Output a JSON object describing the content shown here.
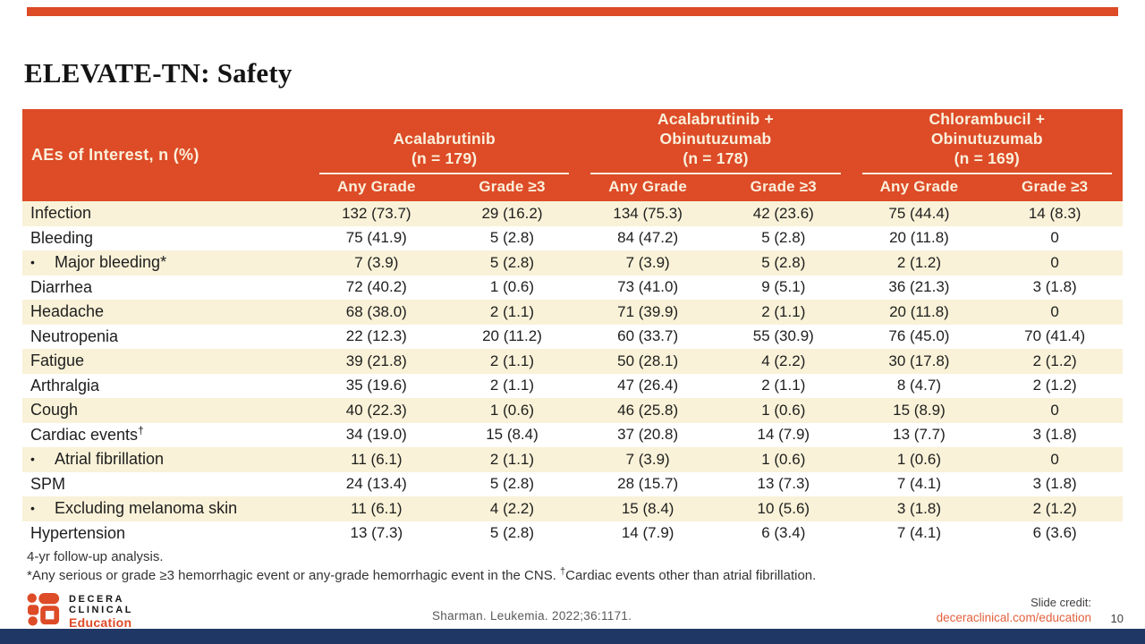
{
  "slide": {
    "title": "ELEVATE-TN: Safety",
    "page_number": "10"
  },
  "colors": {
    "brand_orange": "#DD4B27",
    "header_text_cream": "#FAF0DC",
    "row_stripe": "#F9F2D8",
    "bottom_bar_navy": "#1F3765",
    "link_orange": "#E2603C",
    "body_text": "#1E1E1E"
  },
  "table": {
    "corner_header": "AEs of Interest, n (%)",
    "groups": [
      {
        "title_lines": [
          "Acalabrutinib",
          "(n = 179)"
        ]
      },
      {
        "title_lines": [
          "Acalabrutinib +",
          "Obinutuzumab",
          "(n = 178)"
        ]
      },
      {
        "title_lines": [
          "Chlorambucil +",
          "Obinutuzumab",
          "(n = 169)"
        ]
      }
    ],
    "subheaders": [
      "Any Grade",
      "Grade ≥3",
      "Any Grade",
      "Grade ≥3",
      "Any Grade",
      "Grade ≥3"
    ],
    "rows": [
      {
        "label": "Infection",
        "bullet": false,
        "sup": "",
        "values": [
          "132 (73.7)",
          "29 (16.2)",
          "134 (75.3)",
          "42 (23.6)",
          "75 (44.4)",
          "14 (8.3)"
        ]
      },
      {
        "label": "Bleeding",
        "bullet": false,
        "sup": "",
        "values": [
          "75 (41.9)",
          "5 (2.8)",
          "84 (47.2)",
          "5 (2.8)",
          "20 (11.8)",
          "0"
        ]
      },
      {
        "label": "Major bleeding*",
        "bullet": true,
        "sup": "",
        "values": [
          "7 (3.9)",
          "5 (2.8)",
          "7 (3.9)",
          "5 (2.8)",
          "2 (1.2)",
          "0"
        ]
      },
      {
        "label": "Diarrhea",
        "bullet": false,
        "sup": "",
        "values": [
          "72 (40.2)",
          "1 (0.6)",
          "73 (41.0)",
          "9 (5.1)",
          "36 (21.3)",
          "3 (1.8)"
        ]
      },
      {
        "label": "Headache",
        "bullet": false,
        "sup": "",
        "values": [
          "68 (38.0)",
          "2 (1.1)",
          "71 (39.9)",
          "2 (1.1)",
          "20 (11.8)",
          "0"
        ]
      },
      {
        "label": "Neutropenia",
        "bullet": false,
        "sup": "",
        "values": [
          "22 (12.3)",
          "20 (11.2)",
          "60 (33.7)",
          "55 (30.9)",
          "76 (45.0)",
          "70 (41.4)"
        ]
      },
      {
        "label": "Fatigue",
        "bullet": false,
        "sup": "",
        "values": [
          "39 (21.8)",
          "2 (1.1)",
          "50 (28.1)",
          "4 (2.2)",
          "30 (17.8)",
          "2 (1.2)"
        ]
      },
      {
        "label": "Arthralgia",
        "bullet": false,
        "sup": "",
        "values": [
          "35 (19.6)",
          "2 (1.1)",
          "47 (26.4)",
          "2 (1.1)",
          "8 (4.7)",
          "2 (1.2)"
        ]
      },
      {
        "label": "Cough",
        "bullet": false,
        "sup": "",
        "values": [
          "40 (22.3)",
          "1 (0.6)",
          "46 (25.8)",
          "1 (0.6)",
          "15 (8.9)",
          "0"
        ]
      },
      {
        "label": "Cardiac events",
        "bullet": false,
        "sup": "†",
        "values": [
          "34 (19.0)",
          "15 (8.4)",
          "37 (20.8)",
          "14 (7.9)",
          "13 (7.7)",
          "3 (1.8)"
        ]
      },
      {
        "label": "Atrial fibrillation",
        "bullet": true,
        "sup": "",
        "values": [
          "11 (6.1)",
          "2 (1.1)",
          "7 (3.9)",
          "1 (0.6)",
          "1 (0.6)",
          "0"
        ]
      },
      {
        "label": "SPM",
        "bullet": false,
        "sup": "",
        "values": [
          "24 (13.4)",
          "5 (2.8)",
          "28 (15.7)",
          "13 (7.3)",
          "7 (4.1)",
          "3 (1.8)"
        ]
      },
      {
        "label": "Excluding melanoma skin",
        "bullet": true,
        "sup": "",
        "values": [
          "11 (6.1)",
          "4 (2.2)",
          "15 (8.4)",
          "10 (5.6)",
          "3 (1.8)",
          "2 (1.2)"
        ]
      },
      {
        "label": "Hypertension",
        "bullet": false,
        "sup": "",
        "values": [
          "13 (7.3)",
          "5 (2.8)",
          "14 (7.9)",
          "6 (3.4)",
          "7 (4.1)",
          "6 (3.6)"
        ]
      }
    ]
  },
  "footnotes": {
    "line1": "4-yr follow-up analysis.",
    "line2_pre": "*Any serious or grade ≥3 hemorrhagic event or any-grade hemorrhagic event in the CNS. ",
    "line2_sup": "†",
    "line2_post": "Cardiac events other than atrial fibrillation."
  },
  "footer": {
    "logo_line1": "DECERA",
    "logo_line2": "CLINICAL",
    "logo_line3": "Education",
    "citation": "Sharman. Leukemia. 2022;36:1171.",
    "credit_label": "Slide credit:",
    "credit_link": "deceraclinical.com/education",
    "page_number": "10"
  }
}
